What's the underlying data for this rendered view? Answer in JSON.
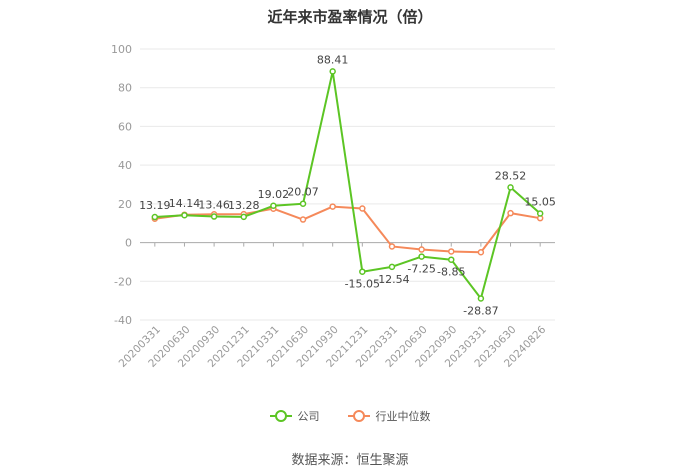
{
  "title": "近年来市盈率情况（倍）",
  "source": "数据来源：恒生聚源",
  "colors": {
    "company": "#5cc524",
    "industry": "#f5895a",
    "grid": "#e9e9e9",
    "axis": "#999999",
    "text": "#999999"
  },
  "chart_data": {
    "type": "line",
    "title": "近年来市盈率情况（倍）",
    "categories": [
      "20200331",
      "20200630",
      "20200930",
      "20201231",
      "20210331",
      "20210630",
      "20210930",
      "20211231",
      "20220331",
      "20220630",
      "20220930",
      "20230331",
      "20230630",
      "20240826"
    ],
    "ylim": [
      -40,
      100
    ],
    "yticks": [
      -40,
      -20,
      0,
      20,
      40,
      60,
      80,
      100
    ],
    "grid": true,
    "legend_position": "bottom",
    "series": [
      {
        "name": "公司",
        "values": [
          13.19,
          14.14,
          13.46,
          13.28,
          19.02,
          20.07,
          88.41,
          -15.05,
          -12.54,
          -7.25,
          -8.85,
          -28.87,
          28.52,
          15.05
        ],
        "labels": [
          "13.19",
          "14.14",
          "13.46",
          "13.28",
          "19.02",
          "20.07",
          "88.41",
          "-15.05",
          "-12.54",
          "-7.25",
          "-8.85",
          "-28.87",
          "28.52",
          "15.05"
        ]
      },
      {
        "name": "行业中位数",
        "values": [
          12.3,
          14.4,
          14.6,
          14.7,
          17.5,
          11.9,
          18.6,
          17.6,
          -2.0,
          -3.6,
          -4.6,
          -5.0,
          15.2,
          12.6
        ]
      }
    ]
  }
}
